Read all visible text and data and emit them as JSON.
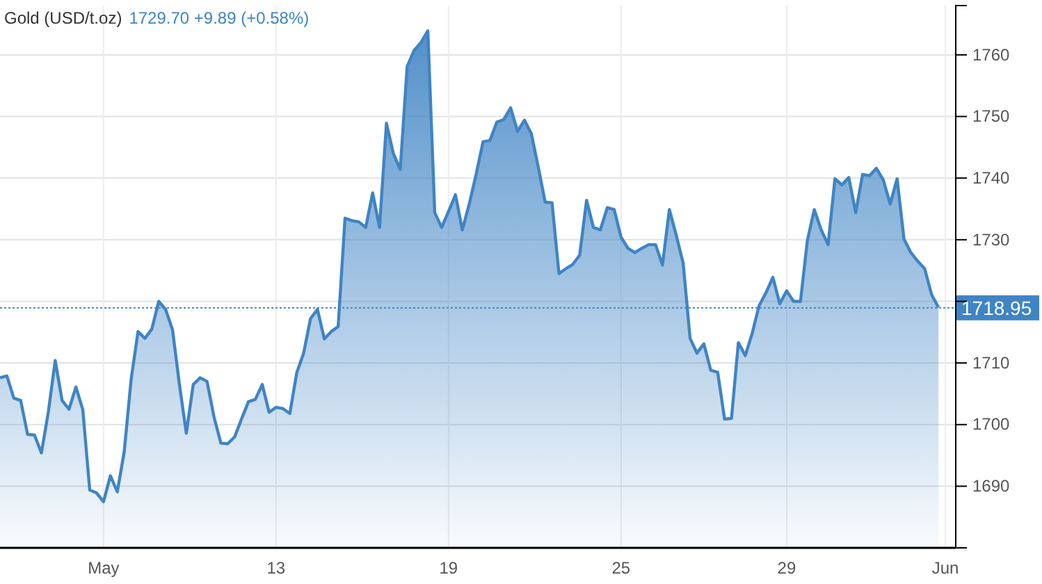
{
  "chart_data": {
    "type": "area",
    "title": "Gold (USD/t.oz)",
    "subtitle": "1729.70  +9.89 (+0.58%)",
    "categories": [
      null,
      null,
      null,
      null,
      null,
      null,
      null,
      null,
      null,
      null,
      null,
      null,
      null,
      null,
      null,
      "May",
      null,
      null,
      null,
      null,
      null,
      null,
      null,
      null,
      null,
      null,
      null,
      null,
      null,
      null,
      null,
      null,
      null,
      null,
      null,
      null,
      null,
      null,
      null,
      null,
      "13",
      null,
      null,
      null,
      null,
      null,
      null,
      null,
      null,
      null,
      null,
      null,
      null,
      null,
      null,
      null,
      null,
      null,
      null,
      null,
      null,
      null,
      null,
      null,
      null,
      "19",
      null,
      null,
      null,
      null,
      null,
      null,
      null,
      null,
      null,
      null,
      null,
      null,
      null,
      null,
      null,
      null,
      null,
      null,
      null,
      null,
      null,
      null,
      null,
      null,
      "25",
      null,
      null,
      null,
      null,
      null,
      null,
      null,
      null,
      null,
      null,
      null,
      null,
      null,
      null,
      null,
      null,
      null,
      null,
      null,
      null,
      null,
      null,
      null,
      "29",
      null,
      null,
      null,
      null,
      null,
      null,
      null,
      null,
      null,
      null,
      null,
      null,
      null,
      null,
      null,
      null,
      null,
      null,
      null,
      null,
      null,
      null,
      "Jun",
      null
    ],
    "series": [
      {
        "color": "#3f84c4",
        "values": [
          1707.6,
          1707.9,
          1704.3,
          1703.9,
          1698.4,
          1698.3,
          1695.4,
          1702,
          1710.4,
          1703.9,
          1702.5,
          1706.1,
          1702.4,
          1689.4,
          1688.9,
          1687.5,
          1691.7,
          1689.1,
          1695.6,
          1707.3,
          1715.1,
          1714,
          1715.5,
          1720,
          1718.7,
          1715.4,
          1706.5,
          1698.6,
          1706.5,
          1707.6,
          1707,
          1701.3,
          1697,
          1696.9,
          1698,
          1700.9,
          1703.7,
          1704.1,
          1706.5,
          1702,
          1702.8,
          1702.6,
          1701.8,
          1708.4,
          1711.6,
          1717.2,
          1718.7,
          1713.9,
          1715.1,
          1715.9,
          1733.5,
          1733.1,
          1732.9,
          1732,
          1737.6,
          1732,
          1748.9,
          1744,
          1741.4,
          1758.1,
          1760.7,
          1762,
          1763.9,
          1734.4,
          1732,
          1734.6,
          1737.3,
          1731.6,
          1735.8,
          1740.6,
          1745.9,
          1746.1,
          1749.1,
          1749.5,
          1751.4,
          1747.6,
          1749.4,
          1747.2,
          1741.8,
          1736.1,
          1736,
          1724.5,
          1725.3,
          1726,
          1727.5,
          1736.4,
          1732,
          1731.6,
          1735.2,
          1734.9,
          1730.4,
          1728.6,
          1727.9,
          1728.6,
          1729.2,
          1729.2,
          1725.9,
          1734.9,
          1730.7,
          1726.2,
          1714,
          1711.6,
          1713.1,
          1708.8,
          1708.5,
          1700.9,
          1701,
          1713.3,
          1711.2,
          1714.8,
          1719.3,
          1721.4,
          1723.9,
          1719.6,
          1721.7,
          1720,
          1720,
          1729.9,
          1734.9,
          1731.6,
          1729.2,
          1739.9,
          1738.9,
          1740.1,
          1734.4,
          1740.6,
          1740.4,
          1741.6,
          1739.7,
          1735.8,
          1739.9,
          1730.1,
          1727.9,
          1726.5,
          1725.3,
          1721.1,
          1719,
          null,
          null
        ]
      }
    ],
    "ylim": [
      1680,
      1768
    ],
    "yticks": [
      1690,
      1700,
      1710,
      {
        "value": 1720,
        "label": null
      },
      1730,
      1740,
      1750,
      1760
    ],
    "ref_lines": [
      {
        "axis": "y",
        "value": 1718.95,
        "label": "1718.95",
        "color": "#3f84c4",
        "line_style": "dotted"
      }
    ],
    "grid": true
  }
}
